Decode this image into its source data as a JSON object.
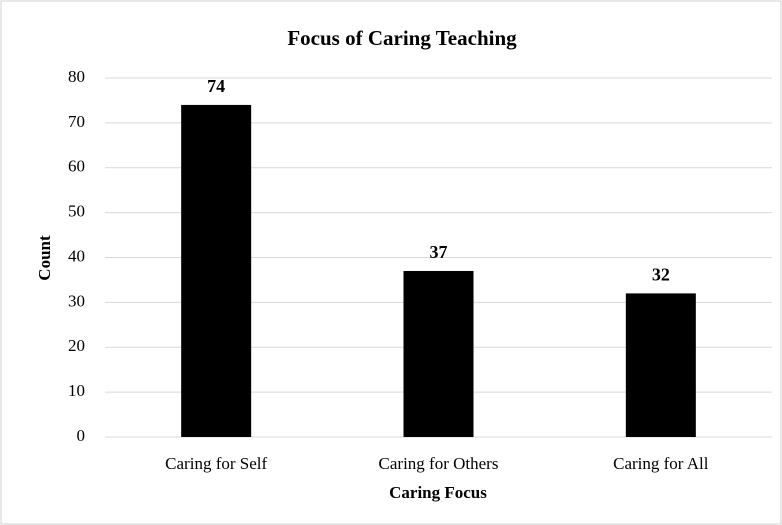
{
  "chart_data": {
    "type": "bar",
    "title": "Focus of Caring Teaching",
    "x_label": "Caring Focus",
    "y_label": "Count",
    "categories": [
      "Caring for Self",
      "Caring for Others",
      "Caring for All"
    ],
    "values": [
      74,
      37,
      32
    ],
    "color": "#000000",
    "ylim": [
      0,
      80
    ],
    "yticks": [
      0,
      10,
      20,
      30,
      40,
      50,
      60,
      70,
      80
    ],
    "grid": true,
    "show_values": true
  }
}
